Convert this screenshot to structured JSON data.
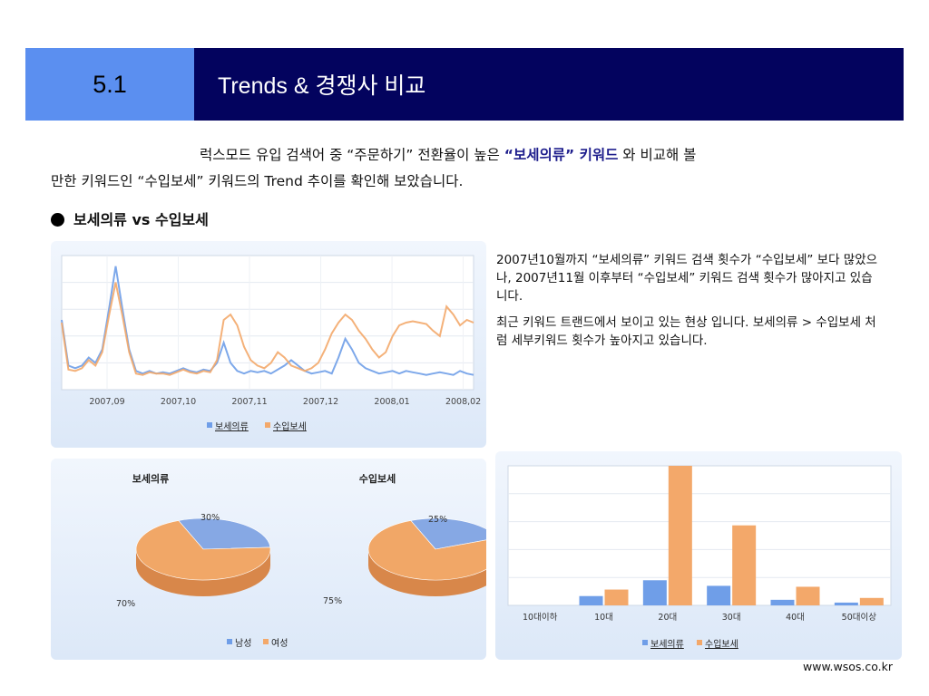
{
  "header": {
    "section_number": "5.1",
    "title": "Trends & 경쟁사 비교"
  },
  "intro": {
    "part1": "럭스모드 유입 검색어 중 “주문하기” 전환율이 높은 ",
    "highlight": "“보세의류” 키워드",
    "part2": " 와 비교해 볼",
    "line2": "만한 키워드인 “수입보세” 키워드의 Trend 추이를  확인해 보았습니다."
  },
  "bullet": {
    "label": "보세의류 vs 수입보세"
  },
  "description": {
    "p1": "2007년10월까지 “보세의류” 키워드 검색 횟수가 “수입보세” 보다 많았으나, 2007년11월 이후부터 “수입보세” 키워드 검색 횟수가 많아지고 있습니다.",
    "p2": "최근 키워드 트랜드에서 보이고 있는 현상 입니다. 보세의류 > 수입보세 처럼 세부키워드 횟수가 높아지고 있습니다."
  },
  "colors": {
    "series_a": "#6f9ee8",
    "series_b": "#f3a86a",
    "header_dark": "#03035e",
    "header_light": "#5b8ff0"
  },
  "chart_data": [
    {
      "type": "line",
      "x_ticks": [
        "2007,09",
        "2007,10",
        "2007,11",
        "2007,12",
        "2008,01",
        "2008,02"
      ],
      "ylim": [
        0,
        100
      ],
      "grid": true,
      "legend_position": "bottom",
      "series": [
        {
          "name": "보세의류",
          "values": [
            52,
            18,
            16,
            18,
            24,
            20,
            30,
            60,
            92,
            60,
            30,
            14,
            12,
            14,
            12,
            13,
            12,
            14,
            16,
            14,
            13,
            15,
            14,
            20,
            35,
            20,
            14,
            12,
            14,
            13,
            14,
            12,
            15,
            18,
            22,
            18,
            14,
            12,
            13,
            14,
            12,
            24,
            38,
            30,
            20,
            16,
            14,
            12,
            13,
            14,
            12,
            14,
            13,
            12,
            11,
            12,
            13,
            12,
            11,
            14,
            12,
            11
          ]
        },
        {
          "name": "수입보세",
          "values": [
            50,
            15,
            14,
            16,
            22,
            18,
            28,
            55,
            80,
            55,
            28,
            12,
            11,
            13,
            12,
            12,
            11,
            13,
            15,
            13,
            12,
            14,
            13,
            22,
            52,
            56,
            48,
            32,
            22,
            18,
            16,
            20,
            28,
            24,
            18,
            16,
            14,
            16,
            20,
            30,
            42,
            50,
            56,
            52,
            44,
            38,
            30,
            24,
            28,
            40,
            48,
            50,
            51,
            50,
            49,
            44,
            40,
            62,
            56,
            48,
            52,
            50
          ]
        }
      ]
    },
    {
      "type": "pie",
      "title": "보세의류",
      "slices": [
        {
          "label": "남성",
          "value": 30
        },
        {
          "label": "여성",
          "value": 70
        }
      ],
      "value_labels": [
        "30%",
        "70%"
      ],
      "legend": [
        "남성",
        "여성"
      ]
    },
    {
      "type": "pie",
      "title": "수입보세",
      "slices": [
        {
          "label": "남성",
          "value": 25
        },
        {
          "label": "여성",
          "value": 75
        }
      ],
      "value_labels": [
        "25%",
        "75%"
      ]
    },
    {
      "type": "bar",
      "categories": [
        "10대이하",
        "10대",
        "20대",
        "30대",
        "40대",
        "50대이상"
      ],
      "ylim": [
        0,
        150
      ],
      "grid": true,
      "legend_position": "bottom",
      "series": [
        {
          "name": "보세의류",
          "values": [
            0,
            10,
            27,
            21,
            6,
            3
          ]
        },
        {
          "name": "수입보세",
          "values": [
            0,
            17,
            150,
            86,
            20,
            8
          ]
        }
      ]
    }
  ],
  "footer": {
    "url": "www.wsos.co.kr"
  }
}
